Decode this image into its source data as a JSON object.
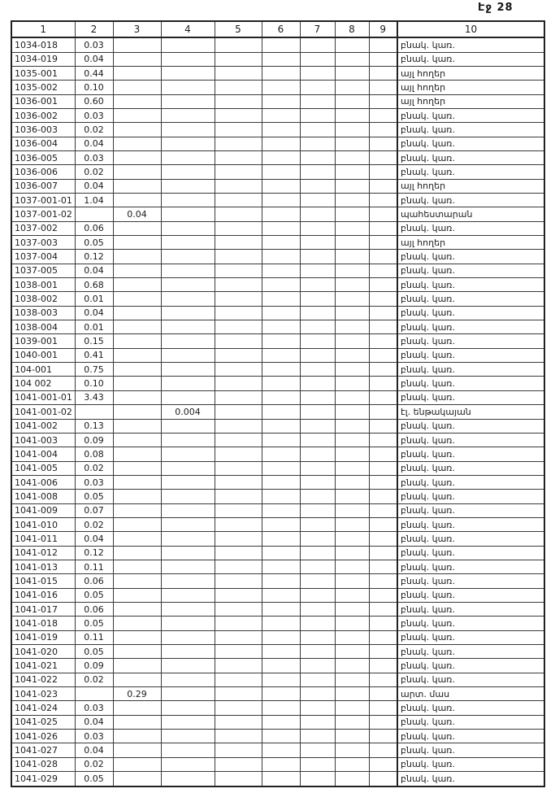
{
  "page": {
    "label": "Էջ 28"
  },
  "colors": {
    "ink": "#1c1c1c",
    "paper": "#ffffff",
    "grid": "#3a3a3a"
  },
  "table": {
    "headers": [
      "1",
      "2",
      "3",
      "4",
      "5",
      "6",
      "7",
      "8",
      "9",
      "10"
    ],
    "rows": [
      [
        "1034-018",
        "0.03",
        "",
        "",
        "",
        "",
        "",
        "",
        "",
        "բնակ. կառ."
      ],
      [
        "1034-019",
        "0.04",
        "",
        "",
        "",
        "",
        "",
        "",
        "",
        "բնակ. կառ."
      ],
      [
        "1035-001",
        "0.44",
        "",
        "",
        "",
        "",
        "",
        "",
        "",
        "այլ հողեր"
      ],
      [
        "1035-002",
        "0.10",
        "",
        "",
        "",
        "",
        "",
        "",
        "",
        "այլ հողեր"
      ],
      [
        "1036-001",
        "0.60",
        "",
        "",
        "",
        "",
        "",
        "",
        "",
        "այլ հողեր"
      ],
      [
        "1036-002",
        "0.03",
        "",
        "",
        "",
        "",
        "",
        "",
        "",
        "բնակ. կառ."
      ],
      [
        "1036-003",
        "0.02",
        "",
        "",
        "",
        "",
        "",
        "",
        "",
        "բնակ. կառ."
      ],
      [
        "1036-004",
        "0.04",
        "",
        "",
        "",
        "",
        "",
        "",
        "",
        "բնակ. կառ."
      ],
      [
        "1036-005",
        "0.03",
        "",
        "",
        "",
        "",
        "",
        "",
        "",
        "բնակ. կառ."
      ],
      [
        "1036-006",
        "0.02",
        "",
        "",
        "",
        "",
        "",
        "",
        "",
        "բնակ. կառ."
      ],
      [
        "1036-007",
        "0.04",
        "",
        "",
        "",
        "",
        "",
        "",
        "",
        "այլ հողեր"
      ],
      [
        "1037-001-01",
        "1.04",
        "",
        "",
        "",
        "",
        "",
        "",
        "",
        "բնակ. կառ."
      ],
      [
        "1037-001-02",
        "",
        "0.04",
        "",
        "",
        "",
        "",
        "",
        "",
        "պահեստարան"
      ],
      [
        "1037-002",
        "0.06",
        "",
        "",
        "",
        "",
        "",
        "",
        "",
        "բնակ. կառ."
      ],
      [
        "1037-003",
        "0.05",
        "",
        "",
        "",
        "",
        "",
        "",
        "",
        "այլ հողեր"
      ],
      [
        "1037-004",
        "0.12",
        "",
        "",
        "",
        "",
        "",
        "",
        "",
        "բնակ. կառ."
      ],
      [
        "1037-005",
        "0.04",
        "",
        "",
        "",
        "",
        "",
        "",
        "",
        "բնակ. կառ."
      ],
      [
        "1038-001",
        "0.68",
        "",
        "",
        "",
        "",
        "",
        "",
        "",
        "բնակ. կառ."
      ],
      [
        "1038-002",
        "0.01",
        "",
        "",
        "",
        "",
        "",
        "",
        "",
        "բնակ. կառ."
      ],
      [
        "1038-003",
        "0.04",
        "",
        "",
        "",
        "",
        "",
        "",
        "",
        "բնակ. կառ."
      ],
      [
        "1038-004",
        "0.01",
        "",
        "",
        "",
        "",
        "",
        "",
        "",
        "բնակ. կառ."
      ],
      [
        "1039-001",
        "0.15",
        "",
        "",
        "",
        "",
        "",
        "",
        "",
        "բնակ. կառ."
      ],
      [
        "1040-001",
        "0.41",
        "",
        "",
        "",
        "",
        "",
        "",
        "",
        "բնակ. կառ."
      ],
      [
        "104-001",
        "0.75",
        "",
        "",
        "",
        "",
        "",
        "",
        "",
        "բնակ. կառ."
      ],
      [
        "104 002",
        "0.10",
        "",
        "",
        "",
        "",
        "",
        "",
        "",
        "բնակ. կառ."
      ],
      [
        "1041-001-01",
        "3.43",
        "",
        "",
        "",
        "",
        "",
        "",
        "",
        "բնակ. կառ."
      ],
      [
        "1041-001-02",
        "",
        "",
        "0.004",
        "",
        "",
        "",
        "",
        "",
        "էլ. ենթակայան"
      ],
      [
        "1041-002",
        "0.13",
        "",
        "",
        "",
        "",
        "",
        "",
        "",
        "բնակ. կառ."
      ],
      [
        "1041-003",
        "0.09",
        "",
        "",
        "",
        "",
        "",
        "",
        "",
        "բնակ. կառ."
      ],
      [
        "1041-004",
        "0.08",
        "",
        "",
        "",
        "",
        "",
        "",
        "",
        "բնակ. կառ."
      ],
      [
        "1041-005",
        "0.02",
        "",
        "",
        "",
        "",
        "",
        "",
        "",
        "բնակ. կառ."
      ],
      [
        "1041-006",
        "0.03",
        "",
        "",
        "",
        "",
        "",
        "",
        "",
        "բնակ. կառ."
      ],
      [
        "1041-008",
        "0.05",
        "",
        "",
        "",
        "",
        "",
        "",
        "",
        "բնակ. կառ."
      ],
      [
        "1041-009",
        "0.07",
        "",
        "",
        "",
        "",
        "",
        "",
        "",
        "բնակ. կառ."
      ],
      [
        "1041-010",
        "0.02",
        "",
        "",
        "",
        "",
        "",
        "",
        "",
        "բնակ. կառ."
      ],
      [
        "1041-011",
        "0.04",
        "",
        "",
        "",
        "",
        "",
        "",
        "",
        "բնակ. կառ."
      ],
      [
        "1041-012",
        "0.12",
        "",
        "",
        "",
        "",
        "",
        "",
        "",
        "բնակ. կառ."
      ],
      [
        "1041-013",
        "0.11",
        "",
        "",
        "",
        "",
        "",
        "",
        "",
        "բնակ. կառ."
      ],
      [
        "1041-015",
        "0.06",
        "",
        "",
        "",
        "",
        "",
        "",
        "",
        "բնակ. կառ."
      ],
      [
        "1041-016",
        "0.05",
        "",
        "",
        "",
        "",
        "",
        "",
        "",
        "բնակ. կառ."
      ],
      [
        "1041-017",
        "0.06",
        "",
        "",
        "",
        "",
        "",
        "",
        "",
        "բնակ. կառ."
      ],
      [
        "1041-018",
        "0.05",
        "",
        "",
        "",
        "",
        "",
        "",
        "",
        "բնակ. կառ."
      ],
      [
        "1041-019",
        "0.11",
        "",
        "",
        "",
        "",
        "",
        "",
        "",
        "բնակ. կառ."
      ],
      [
        "1041-020",
        "0.05",
        "",
        "",
        "",
        "",
        "",
        "",
        "",
        "բնակ. կառ."
      ],
      [
        "1041-021",
        "0.09",
        "",
        "",
        "",
        "",
        "",
        "",
        "",
        "բնակ. կառ."
      ],
      [
        "1041-022",
        "0.02",
        "",
        "",
        "",
        "",
        "",
        "",
        "",
        "բնակ. կառ."
      ],
      [
        "1041-023",
        "",
        "0.29",
        "",
        "",
        "",
        "",
        "",
        "",
        "արտ. մաս"
      ],
      [
        "1041-024",
        "0.03",
        "",
        "",
        "",
        "",
        "",
        "",
        "",
        "բնակ. կառ."
      ],
      [
        "1041-025",
        "0.04",
        "",
        "",
        "",
        "",
        "",
        "",
        "",
        "բնակ. կառ."
      ],
      [
        "1041-026",
        "0.03",
        "",
        "",
        "",
        "",
        "",
        "",
        "",
        "բնակ. կառ."
      ],
      [
        "1041-027",
        "0.04",
        "",
        "",
        "",
        "",
        "",
        "",
        "",
        "բնակ. կառ."
      ],
      [
        "1041-028",
        "0.02",
        "",
        "",
        "",
        "",
        "",
        "",
        "",
        "բնակ. կառ."
      ],
      [
        "1041-029",
        "0.05",
        "",
        "",
        "",
        "",
        "",
        "",
        "",
        "բնակ. կառ."
      ]
    ]
  }
}
